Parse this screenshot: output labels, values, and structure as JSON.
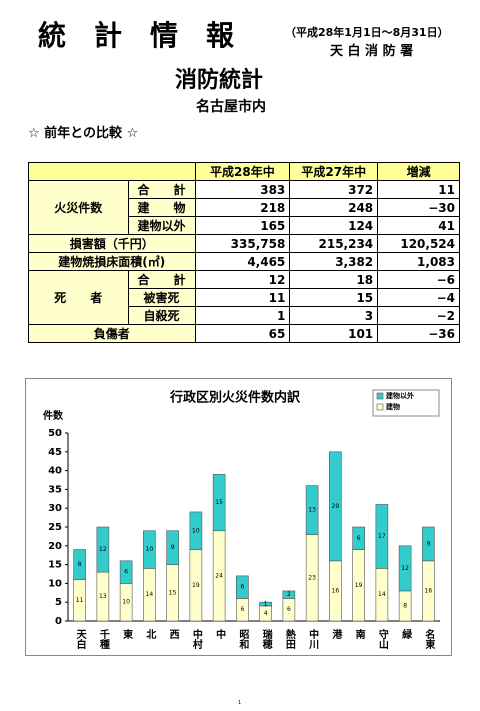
{
  "header": {
    "title": "統　計　情　報",
    "period": "（平成28年1月1日～8月31日）",
    "office": "天 白 消 防 署",
    "subtitle": "消防統計",
    "area": "名古屋市内",
    "section": "☆ 前年との比較 ☆"
  },
  "table": {
    "header": [
      "平成28年中",
      "平成27年中",
      "増減"
    ],
    "fire": {
      "label": "火災件数",
      "rows": [
        {
          "label": "合　　計",
          "cells": [
            "383",
            "372",
            "11"
          ]
        },
        {
          "label": "建　　物",
          "cells": [
            "218",
            "248",
            "−30"
          ]
        },
        {
          "label": "建物以外",
          "cells": [
            "165",
            "124",
            "41"
          ]
        }
      ]
    },
    "single": [
      {
        "label": "損害額（千円）",
        "cells": [
          "335,758",
          "215,234",
          "120,524"
        ]
      },
      {
        "label": "建物焼損床面積(㎡)",
        "cells": [
          "4,465",
          "3,382",
          "1,083"
        ]
      }
    ],
    "deaths": {
      "label": "死　　者",
      "rows": [
        {
          "label": "合　　計",
          "cells": [
            "12",
            "18",
            "−6"
          ]
        },
        {
          "label": "被害死",
          "cells": [
            "11",
            "15",
            "−4"
          ]
        },
        {
          "label": "自殺死",
          "cells": [
            "1",
            "3",
            "−2"
          ]
        }
      ]
    },
    "injured": {
      "label": "負傷者",
      "cells": [
        "65",
        "101",
        "−36"
      ]
    }
  },
  "chart_data": {
    "type": "bar",
    "stacked": true,
    "title": "行政区別火災件数内訳",
    "y_label": "件数",
    "categories": [
      "天白",
      "千種",
      "東",
      "北",
      "西",
      "中村",
      "中",
      "昭和",
      "瑞穂",
      "熱田",
      "中川",
      "港",
      "南",
      "守山",
      "緑",
      "名東"
    ],
    "series": [
      {
        "name": "建物",
        "color": "#ffffcc",
        "values": [
          11,
          13,
          10,
          14,
          15,
          19,
          24,
          6,
          4,
          6,
          23,
          16,
          19,
          14,
          8,
          16
        ]
      },
      {
        "name": "建物以外",
        "color": "#33cccc",
        "values": [
          8,
          12,
          6,
          10,
          9,
          10,
          15,
          6,
          1,
          2,
          13,
          29,
          6,
          17,
          12,
          9
        ]
      }
    ],
    "ylim": [
      0,
      50
    ],
    "yticks": [
      0,
      5,
      10,
      15,
      20,
      25,
      30,
      35,
      40,
      45,
      50
    ],
    "legend": "upper right"
  },
  "page_number": "1"
}
